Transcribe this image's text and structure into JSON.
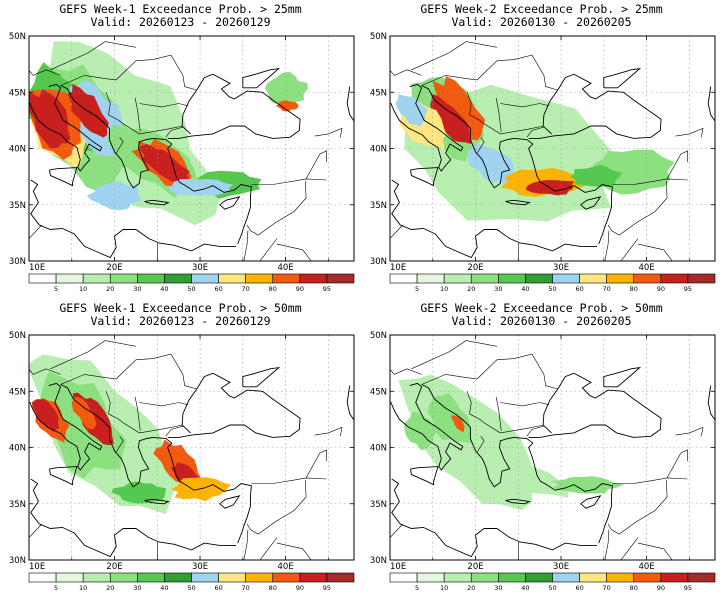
{
  "panels": [
    {
      "id": "p1",
      "title": "GEFS Week-1 Exceedance Prob. > 25mm",
      "valid": "Valid: 20260123 - 20260129"
    },
    {
      "id": "p2",
      "title": "GEFS Week-2 Exceedance Prob. > 25mm",
      "valid": "Valid: 20260130 - 20260205"
    },
    {
      "id": "p3",
      "title": "GEFS Week-1 Exceedance Prob. > 50mm",
      "valid": "Valid: 20260123 - 20260129"
    },
    {
      "id": "p4",
      "title": "GEFS Week-2 Exceedance Prob. > 50mm",
      "valid": "Valid: 20260130 - 20260205"
    }
  ],
  "map": {
    "lat_labels": [
      "50N",
      "45N",
      "40N",
      "35N",
      "30N"
    ],
    "lon_labels": [
      "10E",
      "20E",
      "30E",
      "40E"
    ]
  },
  "colorbar": {
    "labels": [
      "5",
      "10",
      "20",
      "30",
      "40",
      "50",
      "60",
      "70",
      "80",
      "90",
      "95"
    ],
    "colors": [
      "#ffffff",
      "#e6f7e0",
      "#b8eeb0",
      "#8ce07f",
      "#55c94f",
      "#2e9e35",
      "#9fd3f0",
      "#ffe680",
      "#ffb300",
      "#f25a10",
      "#c81f1f",
      "#a52a2a"
    ]
  },
  "colors": {
    "land_line": "#000000",
    "grid": "#9a9a9a"
  }
}
